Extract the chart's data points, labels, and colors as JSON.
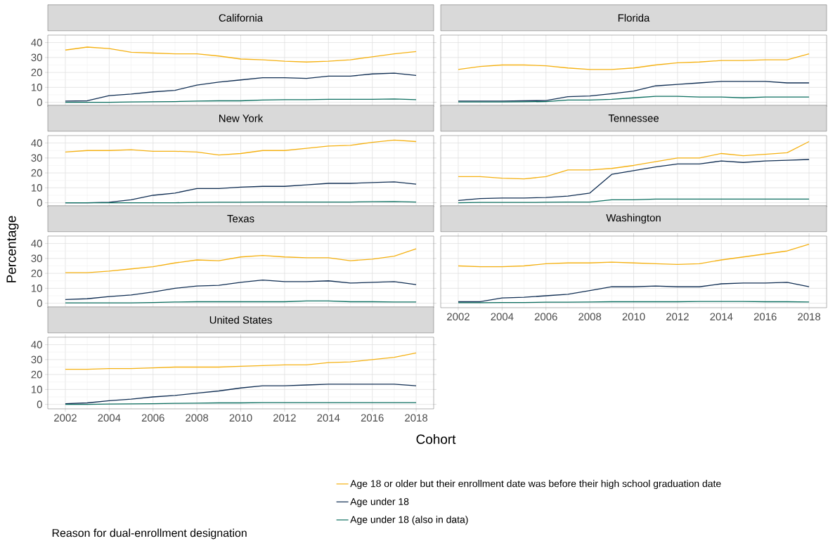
{
  "chart_data": [
    {
      "type": "line",
      "title": "California",
      "x": [
        2002,
        2003,
        2004,
        2005,
        2006,
        2007,
        2008,
        2009,
        2010,
        2011,
        2012,
        2013,
        2014,
        2015,
        2016,
        2017,
        2018
      ],
      "xlim": [
        2001.2,
        2018.8
      ],
      "ylim": [
        -3,
        45
      ],
      "xticks": [
        2002,
        2004,
        2006,
        2008,
        2010,
        2012,
        2014,
        2016,
        2018
      ],
      "yticks": [
        0,
        10,
        20,
        30,
        40
      ],
      "grid": true,
      "tick_labels": "y",
      "series": [
        {
          "color": "#f5b112",
          "values": [
            35,
            37,
            36,
            33.5,
            33,
            32.5,
            32.5,
            31,
            29,
            28.5,
            27.5,
            27,
            27.5,
            28.5,
            30.5,
            32.5,
            34
          ]
        },
        {
          "color": "#0f2d52",
          "values": [
            0.8,
            1,
            4.5,
            5.5,
            7,
            8,
            11.5,
            13.5,
            15,
            16.5,
            16.5,
            16,
            17.5,
            17.5,
            19,
            19.5,
            18
          ]
        },
        {
          "color": "#0b6e5f",
          "values": [
            0,
            0,
            0,
            0.2,
            0.3,
            0.5,
            0.8,
            1,
            1,
            1.5,
            1.8,
            1.8,
            2,
            2,
            2,
            2.2,
            1.8
          ]
        }
      ]
    },
    {
      "type": "line",
      "title": "Florida",
      "x": [
        2002,
        2003,
        2004,
        2005,
        2006,
        2007,
        2008,
        2009,
        2010,
        2011,
        2012,
        2013,
        2014,
        2015,
        2016,
        2017,
        2018
      ],
      "xlim": [
        2001.2,
        2018.8
      ],
      "ylim": [
        -3,
        45
      ],
      "xticks": [
        2002,
        2004,
        2006,
        2008,
        2010,
        2012,
        2014,
        2016,
        2018
      ],
      "yticks": [
        0,
        10,
        20,
        30,
        40
      ],
      "grid": true,
      "tick_labels": false,
      "series": [
        {
          "color": "#f5b112",
          "values": [
            22,
            24,
            25,
            25,
            24.5,
            23,
            22,
            22,
            23,
            25,
            26.5,
            27,
            28,
            28,
            28.5,
            28.5,
            32.5
          ]
        },
        {
          "color": "#0f2d52",
          "values": [
            0.8,
            0.8,
            0.8,
            1,
            1.2,
            3.8,
            4.2,
            5.8,
            7.5,
            11,
            12,
            13,
            14,
            14,
            14,
            13,
            13
          ]
        },
        {
          "color": "#0b6e5f",
          "values": [
            0.2,
            0.2,
            0.2,
            0.3,
            0.5,
            1.5,
            1.5,
            2,
            3,
            4,
            4,
            3.5,
            3.5,
            3,
            3.5,
            3.5,
            3.5
          ]
        }
      ]
    },
    {
      "type": "line",
      "title": "New York",
      "x": [
        2002,
        2003,
        2004,
        2005,
        2006,
        2007,
        2008,
        2009,
        2010,
        2011,
        2012,
        2013,
        2014,
        2015,
        2016,
        2017,
        2018
      ],
      "xlim": [
        2001.2,
        2018.8
      ],
      "ylim": [
        -3,
        45
      ],
      "xticks": [
        2002,
        2004,
        2006,
        2008,
        2010,
        2012,
        2014,
        2016,
        2018
      ],
      "yticks": [
        0,
        10,
        20,
        30,
        40
      ],
      "grid": true,
      "tick_labels": "y",
      "series": [
        {
          "color": "#f5b112",
          "values": [
            34,
            35,
            35,
            35.5,
            34.5,
            34.5,
            34,
            32,
            33,
            35,
            35,
            36.5,
            38,
            38.5,
            40.5,
            42,
            41
          ]
        },
        {
          "color": "#0f2d52",
          "values": [
            0,
            0,
            0.3,
            2,
            5,
            6.5,
            9.5,
            9.5,
            10.5,
            11,
            11,
            12,
            13,
            13,
            13.5,
            14,
            12.5
          ]
        },
        {
          "color": "#0b6e5f",
          "values": [
            0,
            0,
            0,
            0,
            0,
            0,
            0.2,
            0.3,
            0.3,
            0.5,
            0.5,
            0.5,
            0.5,
            0.5,
            0.7,
            0.8,
            0.5
          ]
        }
      ]
    },
    {
      "type": "line",
      "title": "Tennessee",
      "x": [
        2002,
        2003,
        2004,
        2005,
        2006,
        2007,
        2008,
        2009,
        2010,
        2011,
        2012,
        2013,
        2014,
        2015,
        2016,
        2017,
        2018
      ],
      "xlim": [
        2001.2,
        2018.8
      ],
      "ylim": [
        -3,
        45
      ],
      "xticks": [
        2002,
        2004,
        2006,
        2008,
        2010,
        2012,
        2014,
        2016,
        2018
      ],
      "yticks": [
        0,
        10,
        20,
        30,
        40
      ],
      "grid": true,
      "tick_labels": false,
      "series": [
        {
          "color": "#f5b112",
          "values": [
            17.5,
            17.5,
            16.5,
            16,
            17.5,
            22,
            22,
            23,
            25,
            27.5,
            30,
            30,
            33,
            31.5,
            32.5,
            33.5,
            41
          ]
        },
        {
          "color": "#0f2d52",
          "values": [
            1.5,
            2.8,
            3.2,
            3.2,
            3.5,
            4.5,
            6.5,
            19,
            21.5,
            24,
            26,
            26,
            28,
            27,
            28,
            28.5,
            29
          ]
        },
        {
          "color": "#0b6e5f",
          "values": [
            0,
            0.2,
            0.2,
            0.2,
            0.3,
            0.5,
            0.5,
            2,
            2,
            2.5,
            2.5,
            2.5,
            2.5,
            2.5,
            2.5,
            2.5,
            2.5
          ]
        }
      ]
    },
    {
      "type": "line",
      "title": "Texas",
      "ylabel": "Percentage",
      "x": [
        2002,
        2003,
        2004,
        2005,
        2006,
        2007,
        2008,
        2009,
        2010,
        2011,
        2012,
        2013,
        2014,
        2015,
        2016,
        2017,
        2018
      ],
      "xlim": [
        2001.2,
        2018.8
      ],
      "ylim": [
        -3,
        45
      ],
      "xticks": [
        2002,
        2004,
        2006,
        2008,
        2010,
        2012,
        2014,
        2016,
        2018
      ],
      "yticks": [
        0,
        10,
        20,
        30,
        40
      ],
      "grid": true,
      "tick_labels": "y",
      "series": [
        {
          "color": "#f5b112",
          "values": [
            20.5,
            20.5,
            21.5,
            23,
            24.5,
            27,
            29,
            28.5,
            31,
            32,
            31,
            30.5,
            30.5,
            28.5,
            29.5,
            31.5,
            36.5
          ]
        },
        {
          "color": "#0f2d52",
          "values": [
            2.5,
            3,
            4.5,
            5.5,
            7.5,
            10,
            11.5,
            12,
            14,
            15.5,
            14.5,
            14.5,
            15,
            13.5,
            14,
            14.5,
            12.5
          ]
        },
        {
          "color": "#0b6e5f",
          "values": [
            0.2,
            0.2,
            0.2,
            0.2,
            0.5,
            0.8,
            1,
            1,
            1,
            1,
            1,
            1.5,
            1.5,
            1,
            1,
            0.8,
            0.8
          ]
        }
      ]
    },
    {
      "type": "line",
      "title": "Washington",
      "x": [
        2002,
        2003,
        2004,
        2005,
        2006,
        2007,
        2008,
        2009,
        2010,
        2011,
        2012,
        2013,
        2014,
        2015,
        2016,
        2017,
        2018
      ],
      "xlim": [
        2001.2,
        2018.8
      ],
      "ylim": [
        -3,
        45
      ],
      "xticks": [
        2002,
        2004,
        2006,
        2008,
        2010,
        2012,
        2014,
        2016,
        2018
      ],
      "yticks": [
        0,
        10,
        20,
        30,
        40
      ],
      "grid": true,
      "tick_labels": "x",
      "series": [
        {
          "color": "#f5b112",
          "values": [
            25,
            24.5,
            24.5,
            25,
            26.5,
            27,
            27,
            27.5,
            27,
            26.5,
            26,
            26.5,
            29,
            31,
            33,
            35,
            39.5
          ]
        },
        {
          "color": "#0f2d52",
          "values": [
            1,
            1,
            3.5,
            4,
            5,
            6,
            8.5,
            11,
            11,
            11.5,
            11,
            11,
            13,
            13.5,
            13.5,
            14,
            11
          ]
        },
        {
          "color": "#0b6e5f",
          "values": [
            0.3,
            0.3,
            0.5,
            0.5,
            0.7,
            0.7,
            0.8,
            1,
            1,
            1,
            1,
            1.2,
            1.2,
            1.2,
            1,
            1,
            0.8
          ]
        }
      ]
    },
    {
      "type": "line",
      "title": "United States",
      "xlabel": "Cohort",
      "legend_title": "Reason for dual-enrollment designation",
      "legend": "bottom",
      "x": [
        2002,
        2003,
        2004,
        2005,
        2006,
        2007,
        2008,
        2009,
        2010,
        2011,
        2012,
        2013,
        2014,
        2015,
        2016,
        2017,
        2018
      ],
      "xlim": [
        2001.2,
        2018.8
      ],
      "ylim": [
        -3,
        45
      ],
      "xticks": [
        2002,
        2004,
        2006,
        2008,
        2010,
        2012,
        2014,
        2016,
        2018
      ],
      "yticks": [
        0,
        10,
        20,
        30,
        40
      ],
      "grid": true,
      "series": [
        {
          "name": "Age 18 or older but their enrollment date was before their high school graduation date",
          "color": "#f5b112",
          "values": [
            23.5,
            23.5,
            24,
            24,
            24.5,
            25,
            25,
            25,
            25.5,
            26,
            26.5,
            26.5,
            28,
            28.5,
            30,
            31.5,
            34.5
          ]
        },
        {
          "name": "Age under 18",
          "color": "#0f2d52",
          "values": [
            0.5,
            1,
            2.5,
            3.5,
            5,
            6,
            7.5,
            9,
            11,
            12.5,
            12.5,
            13,
            13.5,
            13.5,
            13.5,
            13.5,
            12.5
          ]
        },
        {
          "name": "Age under 18 (also in data)",
          "color": "#0b6e5f",
          "values": [
            0,
            0,
            0.2,
            0.3,
            0.5,
            0.7,
            0.8,
            1,
            1,
            1.2,
            1.2,
            1.2,
            1.2,
            1.2,
            1.2,
            1.2,
            1.2
          ]
        }
      ]
    }
  ]
}
